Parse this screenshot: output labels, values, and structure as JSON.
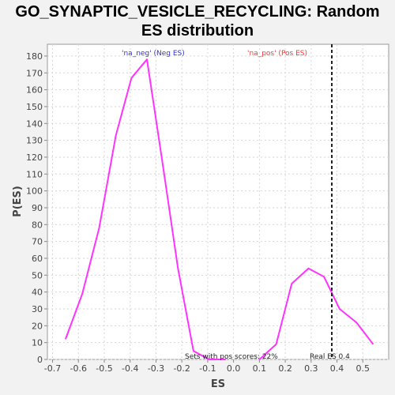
{
  "title_line1": "GO_SYNAPTIC_VESICLE_RECYCLING: Random",
  "title_line2": "ES distribution",
  "chart_data": {
    "type": "line",
    "title": "GO_SYNAPTIC_VESICLE_RECYCLING: Random ES distribution",
    "xlabel": "ES",
    "ylabel": "P(ES)",
    "xlim": [
      -0.72,
      0.6
    ],
    "ylim": [
      0,
      187
    ],
    "x_ticks": [
      -0.7,
      -0.6,
      -0.5,
      -0.4,
      -0.3,
      -0.2,
      -0.1,
      0.0,
      0.1,
      0.2,
      0.3,
      0.4,
      0.5
    ],
    "x_tick_labels": [
      "-0.7",
      "-0.6",
      "-0.5",
      "-0.4",
      "-0.3",
      "-0.2",
      "-0.1",
      "0.0",
      "0.1",
      "0.2",
      "0.3",
      "0.4",
      "0.5"
    ],
    "y_ticks": [
      0,
      10,
      20,
      30,
      40,
      50,
      60,
      70,
      80,
      90,
      100,
      110,
      120,
      130,
      140,
      150,
      160,
      170,
      180
    ],
    "grid": true,
    "series": [
      {
        "name": "'na_neg' (Neg ES)",
        "color": "#ff33ff",
        "x": [
          -0.65,
          -0.585,
          -0.52,
          -0.455,
          -0.395,
          -0.335,
          -0.275,
          -0.215,
          -0.155,
          -0.095,
          -0.03
        ],
        "y": [
          12,
          39,
          78,
          133,
          167,
          178,
          117,
          54,
          5,
          0,
          0
        ]
      },
      {
        "name": "'na_pos' (Pos ES)",
        "color": "#ff33ff",
        "x": [
          0.1,
          0.165,
          0.225,
          0.29,
          0.35,
          0.41,
          0.475,
          0.54
        ],
        "y": [
          0,
          9,
          45,
          54,
          49,
          30,
          22,
          9
        ]
      }
    ],
    "legend": [
      {
        "label": "'na_neg' (Neg ES)",
        "color": "#3333cc"
      },
      {
        "label": "'na_pos' (Pos ES)",
        "color": "#ff3333"
      }
    ],
    "real_es": {
      "value": 0.38,
      "label": "Real ES 0.4"
    },
    "pos_scores_annotation": "Sets with pos scores: 22%"
  }
}
